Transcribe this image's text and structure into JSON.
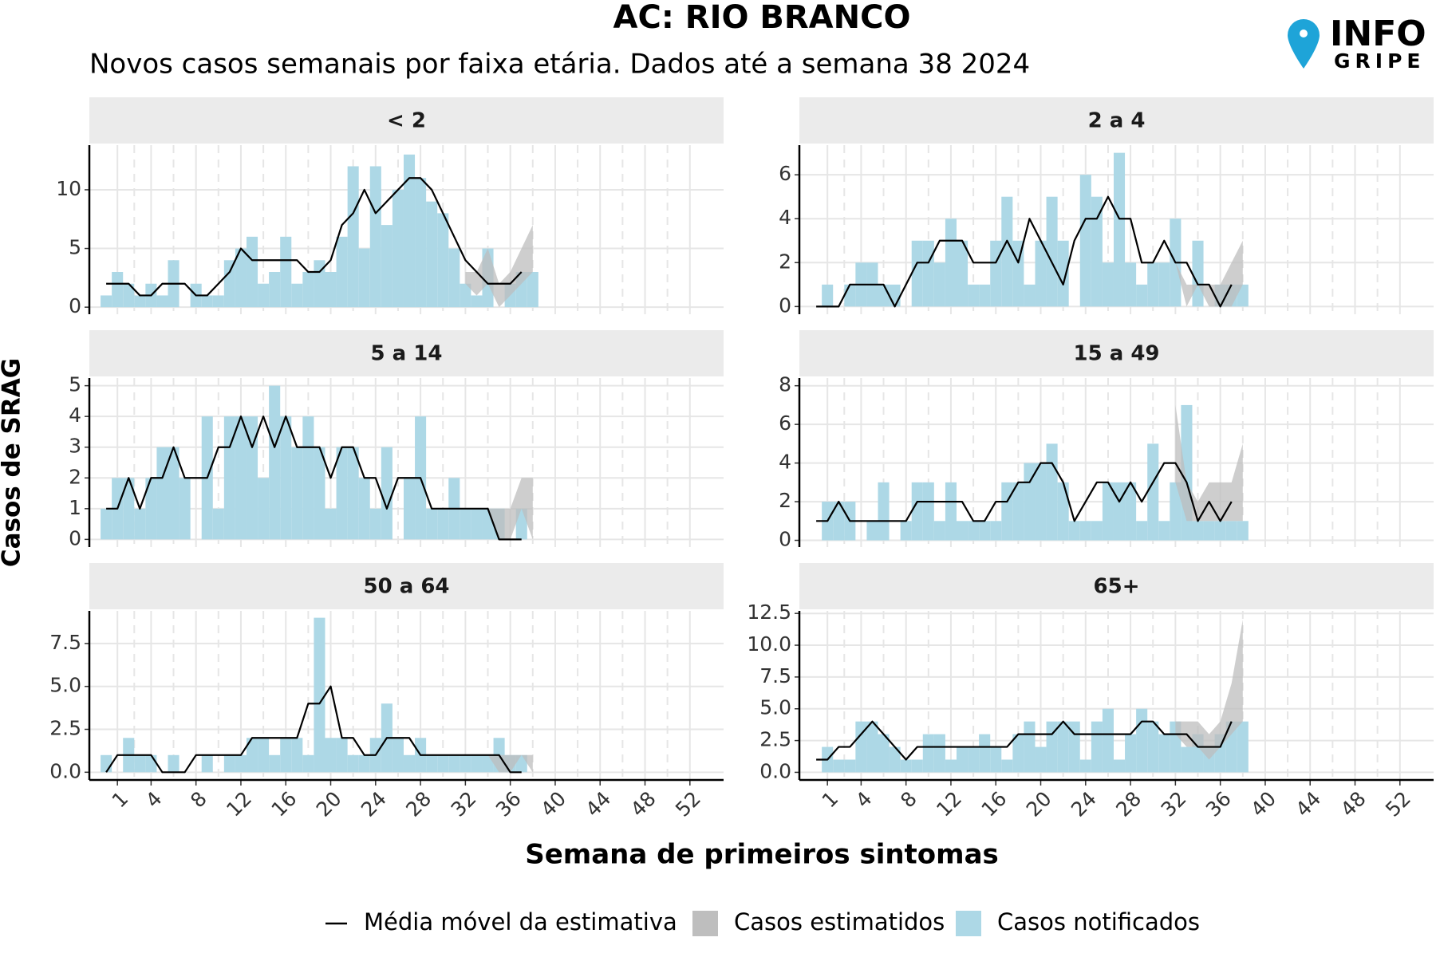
{
  "title": "AC: RIO BRANCO",
  "subtitle": "Novos casos semanais por faixa etária. Dados até a semana 38 2024",
  "x_label": "Semana de primeiros sintomas",
  "y_label": "Casos de SRAG",
  "logo": {
    "line1": "INFO",
    "line2": "GRIPE"
  },
  "chart_data": [
    {
      "type": "bar",
      "title": "< 2",
      "xlim": [
        -1.5,
        55
      ],
      "xticks": [
        1,
        4,
        8,
        12,
        16,
        20,
        24,
        28,
        32,
        36,
        40,
        44,
        48,
        52
      ],
      "ylim": [
        -0.6,
        13.8
      ],
      "yticks": [
        0,
        5,
        10
      ],
      "grid": true,
      "x": [
        0,
        1,
        2,
        3,
        4,
        5,
        6,
        7,
        8,
        9,
        10,
        11,
        12,
        13,
        14,
        15,
        16,
        17,
        18,
        19,
        20,
        21,
        22,
        23,
        24,
        25,
        26,
        27,
        28,
        29,
        30,
        31,
        32,
        33,
        34,
        35,
        36,
        37,
        38
      ],
      "series": [
        {
          "name": "Casos notificados",
          "color": "#add8e6",
          "values": [
            1,
            3,
            2,
            1,
            2,
            1,
            4,
            0,
            2,
            1,
            1,
            4,
            5,
            6,
            2,
            3,
            6,
            2,
            3,
            4,
            3,
            6,
            12,
            5,
            12,
            7,
            10,
            13,
            11,
            9,
            8,
            5,
            2,
            1,
            5,
            0,
            2,
            3,
            3
          ]
        },
        {
          "name": "Casos estimatidos",
          "color": "#bebebe",
          "x": [
            32,
            33,
            34,
            35,
            36,
            37,
            38
          ],
          "lower": [
            2,
            1,
            2,
            0,
            1,
            2,
            3
          ],
          "upper": [
            3,
            3,
            5,
            2,
            3,
            5,
            7
          ]
        },
        {
          "name": "Média móvel da estimativa",
          "color": "#000000",
          "values": [
            2,
            2,
            2,
            1,
            1,
            2,
            2,
            2,
            1,
            1,
            2,
            3,
            5,
            4,
            4,
            4,
            4,
            4,
            3,
            3,
            4,
            7,
            8,
            10,
            8,
            9,
            10,
            11,
            11,
            10,
            8,
            6,
            4,
            3,
            2,
            2,
            2,
            3,
            null
          ]
        }
      ]
    },
    {
      "type": "bar",
      "title": "2 a 4",
      "xlim": [
        -1.5,
        55
      ],
      "xticks": [
        1,
        4,
        8,
        12,
        16,
        20,
        24,
        28,
        32,
        36,
        40,
        44,
        48,
        52
      ],
      "ylim": [
        -0.35,
        7.35
      ],
      "yticks": [
        0,
        2,
        4,
        6
      ],
      "grid": true,
      "x": [
        0,
        1,
        2,
        3,
        4,
        5,
        6,
        7,
        8,
        9,
        10,
        11,
        12,
        13,
        14,
        15,
        16,
        17,
        18,
        19,
        20,
        21,
        22,
        23,
        24,
        25,
        26,
        27,
        28,
        29,
        30,
        31,
        32,
        33,
        34,
        35,
        36,
        37,
        38
      ],
      "series": [
        {
          "name": "Casos notificados",
          "color": "#add8e6",
          "values": [
            0,
            1,
            0,
            1,
            2,
            2,
            1,
            1,
            0,
            3,
            3,
            2,
            4,
            3,
            1,
            1,
            3,
            5,
            3,
            1,
            3,
            5,
            3,
            0,
            6,
            5,
            2,
            7,
            2,
            1,
            2,
            2,
            4,
            0,
            3,
            0,
            1,
            1,
            1
          ]
        },
        {
          "name": "Casos estimatidos",
          "color": "#bebebe",
          "x": [
            32,
            33,
            34,
            35,
            36,
            37,
            38
          ],
          "lower": [
            2,
            0,
            1,
            0,
            0,
            0,
            1
          ],
          "upper": [
            2,
            1,
            1,
            1,
            1,
            2,
            3
          ]
        },
        {
          "name": "Média móvel da estimativa",
          "color": "#000000",
          "values": [
            0,
            0,
            0,
            1,
            1,
            1,
            1,
            0,
            1,
            2,
            2,
            3,
            3,
            3,
            2,
            2,
            2,
            3,
            2,
            4,
            3,
            2,
            1,
            3,
            4,
            4,
            5,
            4,
            4,
            2,
            2,
            3,
            2,
            2,
            1,
            1,
            0,
            1,
            null
          ]
        }
      ]
    },
    {
      "type": "bar",
      "title": "5 a 14",
      "xlim": [
        -1.5,
        55
      ],
      "xticks": [
        1,
        4,
        8,
        12,
        16,
        20,
        24,
        28,
        32,
        36,
        40,
        44,
        48,
        52
      ],
      "ylim": [
        -0.25,
        5.25
      ],
      "yticks": [
        0,
        1,
        2,
        3,
        4,
        5
      ],
      "grid": true,
      "x": [
        0,
        1,
        2,
        3,
        4,
        5,
        6,
        7,
        8,
        9,
        10,
        11,
        12,
        13,
        14,
        15,
        16,
        17,
        18,
        19,
        20,
        21,
        22,
        23,
        24,
        25,
        26,
        27,
        28,
        29,
        30,
        31,
        32,
        33,
        34,
        35,
        36,
        37,
        38
      ],
      "series": [
        {
          "name": "Casos notificados",
          "color": "#add8e6",
          "values": [
            1,
            2,
            2,
            1,
            2,
            3,
            3,
            2,
            0,
            4,
            1,
            4,
            4,
            4,
            2,
            5,
            4,
            3,
            4,
            3,
            1,
            3,
            3,
            2,
            1,
            3,
            0,
            2,
            4,
            1,
            1,
            2,
            1,
            1,
            1,
            1,
            0,
            1,
            0
          ]
        },
        {
          "name": "Casos estimatidos",
          "color": "#bebebe",
          "x": [
            32,
            33,
            34,
            35,
            36,
            37,
            38
          ],
          "lower": [
            1,
            1,
            1,
            0,
            0,
            1,
            0
          ],
          "upper": [
            1,
            1,
            1,
            1,
            1,
            2,
            2
          ]
        },
        {
          "name": "Média móvel da estimativa",
          "color": "#000000",
          "values": [
            1,
            1,
            2,
            1,
            2,
            2,
            3,
            2,
            2,
            2,
            3,
            3,
            4,
            3,
            4,
            3,
            4,
            3,
            3,
            3,
            2,
            3,
            3,
            2,
            2,
            1,
            2,
            2,
            2,
            1,
            1,
            1,
            1,
            1,
            1,
            0,
            0,
            0,
            null
          ]
        }
      ]
    },
    {
      "type": "bar",
      "title": "15 a 49",
      "xlim": [
        -1.5,
        55
      ],
      "xticks": [
        1,
        4,
        8,
        12,
        16,
        20,
        24,
        28,
        32,
        36,
        40,
        44,
        48,
        52
      ],
      "ylim": [
        -0.35,
        8.4
      ],
      "yticks": [
        0,
        2,
        4,
        6,
        8
      ],
      "grid": true,
      "x": [
        0,
        1,
        2,
        3,
        4,
        5,
        6,
        7,
        8,
        9,
        10,
        11,
        12,
        13,
        14,
        15,
        16,
        17,
        18,
        19,
        20,
        21,
        22,
        23,
        24,
        25,
        26,
        27,
        28,
        29,
        30,
        31,
        32,
        33,
        34,
        35,
        36,
        37,
        38
      ],
      "series": [
        {
          "name": "Casos notificados",
          "color": "#add8e6",
          "values": [
            0,
            2,
            2,
            2,
            0,
            1,
            3,
            0,
            1,
            3,
            3,
            1,
            3,
            1,
            1,
            1,
            1,
            3,
            3,
            4,
            4,
            5,
            3,
            1,
            1,
            1,
            3,
            3,
            3,
            1,
            5,
            1,
            3,
            7,
            1,
            1,
            1,
            1,
            1
          ]
        },
        {
          "name": "Casos estimatidos",
          "color": "#bebebe",
          "x": [
            32,
            33,
            34,
            35,
            36,
            37,
            38
          ],
          "lower": [
            3,
            1,
            1,
            1,
            1,
            1,
            1
          ],
          "upper": [
            7,
            3,
            2,
            3,
            3,
            3,
            5
          ]
        },
        {
          "name": "Média móvel da estimativa",
          "color": "#000000",
          "values": [
            1,
            1,
            2,
            1,
            1,
            1,
            1,
            1,
            1,
            2,
            2,
            2,
            2,
            2,
            1,
            1,
            2,
            2,
            3,
            3,
            4,
            4,
            3,
            1,
            2,
            3,
            3,
            2,
            3,
            2,
            3,
            4,
            4,
            3,
            1,
            2,
            1,
            2,
            null
          ]
        }
      ]
    },
    {
      "type": "bar",
      "title": "50 a 64",
      "xlim": [
        -1.5,
        55
      ],
      "xticks": [
        1,
        4,
        8,
        12,
        16,
        20,
        24,
        28,
        32,
        36,
        40,
        44,
        48,
        52
      ],
      "ylim": [
        -0.45,
        9.4
      ],
      "yticks": [
        {
          "value": 0,
          "label": "0.0"
        },
        2.5,
        {
          "value": 5,
          "label": "5.0"
        },
        7.5
      ],
      "grid": true,
      "x": [
        0,
        1,
        2,
        3,
        4,
        5,
        6,
        7,
        8,
        9,
        10,
        11,
        12,
        13,
        14,
        15,
        16,
        17,
        18,
        19,
        20,
        21,
        22,
        23,
        24,
        25,
        26,
        27,
        28,
        29,
        30,
        31,
        32,
        33,
        34,
        35,
        36,
        37,
        38
      ],
      "series": [
        {
          "name": "Casos notificados",
          "color": "#add8e6",
          "values": [
            1,
            0,
            2,
            1,
            1,
            0,
            1,
            0,
            0,
            1,
            0,
            1,
            1,
            2,
            2,
            1,
            2,
            2,
            1,
            9,
            2,
            2,
            1,
            1,
            2,
            4,
            2,
            1,
            2,
            1,
            1,
            1,
            1,
            1,
            1,
            2,
            1,
            1,
            0
          ]
        },
        {
          "name": "Casos estimatidos",
          "color": "#bebebe",
          "x": [
            32,
            33,
            34,
            35,
            36,
            37,
            38
          ],
          "lower": [
            1,
            1,
            1,
            0,
            0,
            1,
            0
          ],
          "upper": [
            1,
            1,
            1,
            1,
            1,
            1,
            1
          ]
        },
        {
          "name": "Média móvel da estimativa",
          "color": "#000000",
          "values": [
            0,
            1,
            1,
            1,
            1,
            0,
            0,
            0,
            1,
            1,
            1,
            1,
            1,
            2,
            2,
            2,
            2,
            2,
            4,
            4,
            5,
            2,
            2,
            1,
            1,
            2,
            2,
            2,
            1,
            1,
            1,
            1,
            1,
            1,
            1,
            1,
            0,
            0,
            null
          ]
        }
      ]
    },
    {
      "type": "bar",
      "title": "65+",
      "xlim": [
        -1.5,
        55
      ],
      "xticks": [
        1,
        4,
        8,
        12,
        16,
        20,
        24,
        28,
        32,
        36,
        40,
        44,
        48,
        52
      ],
      "ylim": [
        -0.6,
        12.7
      ],
      "yticks": [
        {
          "value": 0,
          "label": "0.0"
        },
        2.5,
        {
          "value": 5,
          "label": "5.0"
        },
        7.5,
        {
          "value": 10,
          "label": "10.0"
        },
        12.5
      ],
      "grid": true,
      "x": [
        0,
        1,
        2,
        3,
        4,
        5,
        6,
        7,
        8,
        9,
        10,
        11,
        12,
        13,
        14,
        15,
        16,
        17,
        18,
        19,
        20,
        21,
        22,
        23,
        24,
        25,
        26,
        27,
        28,
        29,
        30,
        31,
        32,
        33,
        34,
        35,
        36,
        37,
        38
      ],
      "series": [
        {
          "name": "Casos notificados",
          "color": "#add8e6",
          "values": [
            0,
            2,
            1,
            1,
            4,
            4,
            3,
            2,
            1,
            1,
            3,
            3,
            1,
            2,
            2,
            3,
            2,
            1,
            3,
            4,
            2,
            4,
            4,
            4,
            1,
            4,
            5,
            1,
            3,
            5,
            4,
            3,
            4,
            2,
            3,
            2,
            3,
            4,
            4
          ]
        },
        {
          "name": "Casos estimatidos",
          "color": "#bebebe",
          "x": [
            32,
            33,
            34,
            35,
            36,
            37,
            38
          ],
          "lower": [
            3,
            2,
            2,
            1,
            2,
            3,
            4
          ],
          "upper": [
            4,
            4,
            4,
            3,
            4,
            7,
            12
          ]
        },
        {
          "name": "Média móvel da estimativa",
          "color": "#000000",
          "values": [
            1,
            1,
            2,
            2,
            3,
            4,
            3,
            2,
            1,
            2,
            2,
            2,
            2,
            2,
            2,
            2,
            2,
            2,
            3,
            3,
            3,
            3,
            4,
            3,
            3,
            3,
            3,
            3,
            3,
            4,
            4,
            3,
            3,
            3,
            2,
            2,
            2,
            4,
            null
          ]
        }
      ]
    }
  ]
}
